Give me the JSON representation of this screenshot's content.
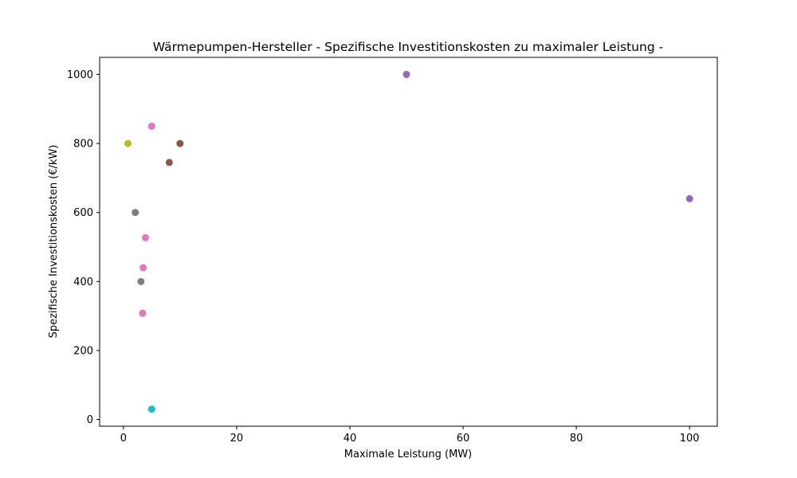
{
  "chart_data": {
    "type": "scatter",
    "title": "Wärmepumpen-Hersteller - Spezifische Investitionskosten zu maximaler Leistung -",
    "xlabel": "Maximale Leistung (MW)",
    "ylabel": "Spezifische Investitionskosten (€/kW)",
    "xlim": [
      -4.2,
      104.9
    ],
    "ylim": [
      -19.4,
      1049.5
    ],
    "xticks": [
      0,
      20,
      40,
      60,
      80,
      100
    ],
    "yticks": [
      0,
      200,
      400,
      600,
      800,
      1000
    ],
    "grid": false,
    "legend": "none",
    "points": [
      {
        "x": 50,
        "y": 1000,
        "color": "#9467bd"
      },
      {
        "x": 100,
        "y": 640,
        "color": "#9467bd"
      },
      {
        "x": 5,
        "y": 850,
        "color": "#e377c2"
      },
      {
        "x": 3.9,
        "y": 527,
        "color": "#e377c2"
      },
      {
        "x": 3.5,
        "y": 440,
        "color": "#e377c2"
      },
      {
        "x": 3.4,
        "y": 308,
        "color": "#e377c2"
      },
      {
        "x": 10,
        "y": 800,
        "color": "#8c564b"
      },
      {
        "x": 8.1,
        "y": 745,
        "color": "#8c564b"
      },
      {
        "x": 0.8,
        "y": 800,
        "color": "#bcbd22"
      },
      {
        "x": 2.1,
        "y": 600,
        "color": "#7f7f7f"
      },
      {
        "x": 3.1,
        "y": 400,
        "color": "#7f7f7f"
      },
      {
        "x": 5,
        "y": 30,
        "color": "#17becf"
      }
    ]
  }
}
